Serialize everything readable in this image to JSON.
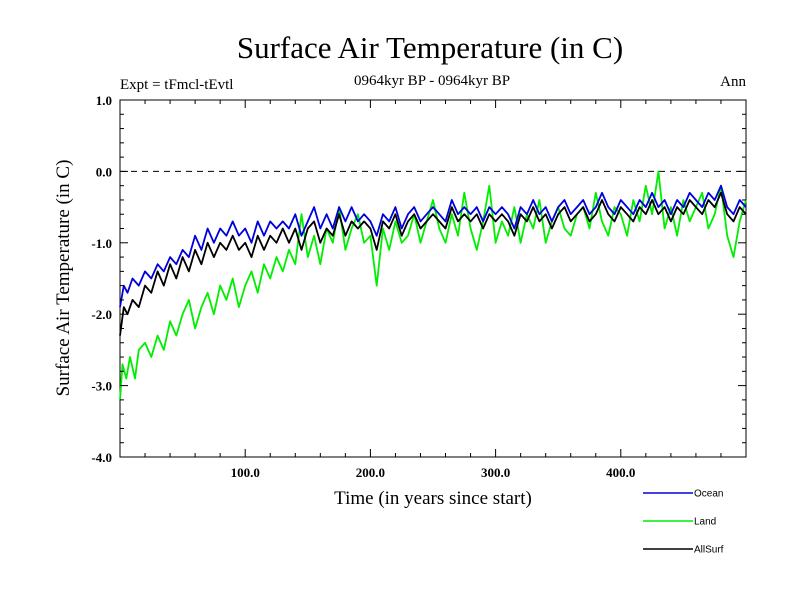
{
  "chart_data": {
    "type": "line",
    "title": "Surface Air Temperature (in C)",
    "subtitle": "0964kyr BP - 0964kyr BP",
    "expt_label": "Expt = tFmcl-tEvtl",
    "season_label": "Ann",
    "xlabel": "Time (in years since start)",
    "ylabel": "Surface Air Temperature (in C)",
    "xlim": [
      0,
      500
    ],
    "ylim": [
      -4.0,
      1.0
    ],
    "x_ticks": [
      100,
      200,
      300,
      400
    ],
    "x_tick_labels": [
      "100.0",
      "200.0",
      "300.0",
      "400.0"
    ],
    "y_ticks": [
      -4,
      -3,
      -2,
      -1,
      0,
      1
    ],
    "y_tick_labels": [
      "-4.0",
      "-3.0",
      "-2.0",
      "-1.0",
      "0.0",
      "1.0"
    ],
    "reference_line": {
      "y": 0.0,
      "style": "dashed"
    },
    "series": [
      {
        "name": "Land",
        "color": "#00ee00",
        "x": [
          0,
          2,
          5,
          8,
          12,
          15,
          20,
          25,
          30,
          35,
          40,
          45,
          50,
          55,
          60,
          65,
          70,
          75,
          80,
          85,
          90,
          95,
          100,
          105,
          110,
          115,
          120,
          125,
          130,
          135,
          140,
          145,
          150,
          155,
          160,
          165,
          170,
          175,
          180,
          185,
          190,
          195,
          200,
          205,
          210,
          215,
          220,
          225,
          230,
          235,
          240,
          245,
          250,
          255,
          260,
          265,
          270,
          275,
          280,
          285,
          290,
          295,
          300,
          305,
          310,
          315,
          320,
          325,
          330,
          335,
          340,
          345,
          350,
          355,
          360,
          365,
          370,
          375,
          380,
          385,
          390,
          395,
          400,
          405,
          410,
          415,
          420,
          425,
          430,
          435,
          440,
          445,
          450,
          455,
          460,
          465,
          470,
          475,
          480,
          485,
          490,
          495,
          500
        ],
        "values": [
          -3.2,
          -2.7,
          -2.9,
          -2.6,
          -2.9,
          -2.5,
          -2.4,
          -2.6,
          -2.3,
          -2.5,
          -2.1,
          -2.3,
          -2.0,
          -1.8,
          -2.2,
          -1.9,
          -1.7,
          -2.0,
          -1.6,
          -1.8,
          -1.5,
          -1.9,
          -1.6,
          -1.4,
          -1.7,
          -1.3,
          -1.5,
          -1.2,
          -1.4,
          -1.1,
          -1.3,
          -0.6,
          -1.2,
          -0.9,
          -1.3,
          -0.8,
          -1.0,
          -0.5,
          -1.1,
          -0.8,
          -0.6,
          -1.0,
          -0.9,
          -1.6,
          -0.8,
          -1.1,
          -0.7,
          -1.0,
          -0.9,
          -0.6,
          -1.0,
          -0.7,
          -0.4,
          -0.8,
          -1.0,
          -0.6,
          -0.9,
          -0.3,
          -0.8,
          -1.1,
          -0.7,
          -0.2,
          -1.0,
          -0.7,
          -0.9,
          -0.5,
          -1.0,
          -0.6,
          -0.8,
          -0.4,
          -1.0,
          -0.7,
          -0.5,
          -0.8,
          -0.9,
          -0.6,
          -0.5,
          -0.8,
          -0.3,
          -0.7,
          -0.9,
          -0.5,
          -0.6,
          -0.9,
          -0.4,
          -0.7,
          -0.2,
          -0.6,
          0.0,
          -0.8,
          -0.5,
          -0.9,
          -0.4,
          -0.7,
          -0.5,
          -0.3,
          -0.8,
          -0.6,
          -0.2,
          -0.9,
          -1.2,
          -0.7,
          -0.4
        ]
      },
      {
        "name": "AllSurf",
        "color": "#000000",
        "x": [
          0,
          3,
          6,
          10,
          15,
          20,
          25,
          30,
          35,
          40,
          45,
          50,
          55,
          60,
          65,
          70,
          75,
          80,
          85,
          90,
          95,
          100,
          105,
          110,
          115,
          120,
          125,
          130,
          135,
          140,
          145,
          150,
          155,
          160,
          165,
          170,
          175,
          180,
          185,
          190,
          195,
          200,
          205,
          210,
          215,
          220,
          225,
          230,
          235,
          240,
          245,
          250,
          255,
          260,
          265,
          270,
          275,
          280,
          285,
          290,
          295,
          300,
          305,
          310,
          315,
          320,
          325,
          330,
          335,
          340,
          345,
          350,
          355,
          360,
          365,
          370,
          375,
          380,
          385,
          390,
          395,
          400,
          405,
          410,
          415,
          420,
          425,
          430,
          435,
          440,
          445,
          450,
          455,
          460,
          465,
          470,
          475,
          480,
          485,
          490,
          495,
          500
        ],
        "values": [
          -2.3,
          -1.9,
          -2.0,
          -1.8,
          -1.9,
          -1.6,
          -1.7,
          -1.4,
          -1.6,
          -1.3,
          -1.5,
          -1.2,
          -1.4,
          -1.1,
          -1.3,
          -1.0,
          -1.2,
          -1.0,
          -1.1,
          -0.9,
          -1.1,
          -1.0,
          -1.2,
          -0.9,
          -1.1,
          -0.9,
          -1.0,
          -0.8,
          -1.0,
          -0.8,
          -1.1,
          -0.8,
          -0.7,
          -1.0,
          -0.8,
          -0.9,
          -0.6,
          -0.9,
          -0.7,
          -0.8,
          -0.7,
          -0.8,
          -1.1,
          -0.7,
          -0.8,
          -0.6,
          -0.9,
          -0.7,
          -0.6,
          -0.8,
          -0.7,
          -0.6,
          -0.7,
          -0.8,
          -0.5,
          -0.7,
          -0.6,
          -0.7,
          -0.6,
          -0.8,
          -0.6,
          -0.7,
          -0.6,
          -0.7,
          -0.9,
          -0.6,
          -0.7,
          -0.5,
          -0.7,
          -0.6,
          -0.8,
          -0.6,
          -0.5,
          -0.7,
          -0.6,
          -0.5,
          -0.7,
          -0.6,
          -0.4,
          -0.6,
          -0.7,
          -0.5,
          -0.6,
          -0.7,
          -0.5,
          -0.6,
          -0.4,
          -0.6,
          -0.5,
          -0.7,
          -0.5,
          -0.6,
          -0.4,
          -0.5,
          -0.6,
          -0.4,
          -0.5,
          -0.3,
          -0.6,
          -0.7,
          -0.5,
          -0.6
        ]
      },
      {
        "name": "Ocean",
        "color": "#0000dd",
        "x": [
          0,
          3,
          6,
          10,
          15,
          20,
          25,
          30,
          35,
          40,
          45,
          50,
          55,
          60,
          65,
          70,
          75,
          80,
          85,
          90,
          95,
          100,
          105,
          110,
          115,
          120,
          125,
          130,
          135,
          140,
          145,
          150,
          155,
          160,
          165,
          170,
          175,
          180,
          185,
          190,
          195,
          200,
          205,
          210,
          215,
          220,
          225,
          230,
          235,
          240,
          245,
          250,
          255,
          260,
          265,
          270,
          275,
          280,
          285,
          290,
          295,
          300,
          305,
          310,
          315,
          320,
          325,
          330,
          335,
          340,
          345,
          350,
          355,
          360,
          365,
          370,
          375,
          380,
          385,
          390,
          395,
          400,
          405,
          410,
          415,
          420,
          425,
          430,
          435,
          440,
          445,
          450,
          455,
          460,
          465,
          470,
          475,
          480,
          485,
          490,
          495,
          500
        ],
        "values": [
          -1.9,
          -1.6,
          -1.7,
          -1.5,
          -1.6,
          -1.4,
          -1.5,
          -1.3,
          -1.4,
          -1.2,
          -1.3,
          -1.1,
          -1.2,
          -0.9,
          -1.1,
          -0.8,
          -1.0,
          -0.8,
          -0.9,
          -0.7,
          -0.9,
          -0.8,
          -1.0,
          -0.7,
          -0.9,
          -0.7,
          -0.8,
          -0.7,
          -0.8,
          -0.6,
          -0.9,
          -0.7,
          -0.5,
          -0.8,
          -0.6,
          -0.8,
          -0.5,
          -0.7,
          -0.5,
          -0.7,
          -0.6,
          -0.7,
          -0.9,
          -0.6,
          -0.7,
          -0.5,
          -0.8,
          -0.6,
          -0.5,
          -0.7,
          -0.6,
          -0.5,
          -0.6,
          -0.7,
          -0.4,
          -0.6,
          -0.5,
          -0.6,
          -0.5,
          -0.7,
          -0.5,
          -0.6,
          -0.5,
          -0.6,
          -0.8,
          -0.5,
          -0.6,
          -0.4,
          -0.6,
          -0.5,
          -0.7,
          -0.5,
          -0.4,
          -0.6,
          -0.5,
          -0.4,
          -0.6,
          -0.5,
          -0.3,
          -0.5,
          -0.6,
          -0.4,
          -0.5,
          -0.6,
          -0.4,
          -0.5,
          -0.3,
          -0.5,
          -0.4,
          -0.6,
          -0.4,
          -0.5,
          -0.3,
          -0.4,
          -0.5,
          -0.3,
          -0.4,
          -0.2,
          -0.5,
          -0.6,
          -0.4,
          -0.5
        ]
      }
    ],
    "legend": [
      {
        "name": "Ocean",
        "color": "#0000dd"
      },
      {
        "name": "Land",
        "color": "#00ee00"
      },
      {
        "name": "AllSurf",
        "color": "#000000"
      }
    ],
    "legend_position": "bottom-right"
  }
}
